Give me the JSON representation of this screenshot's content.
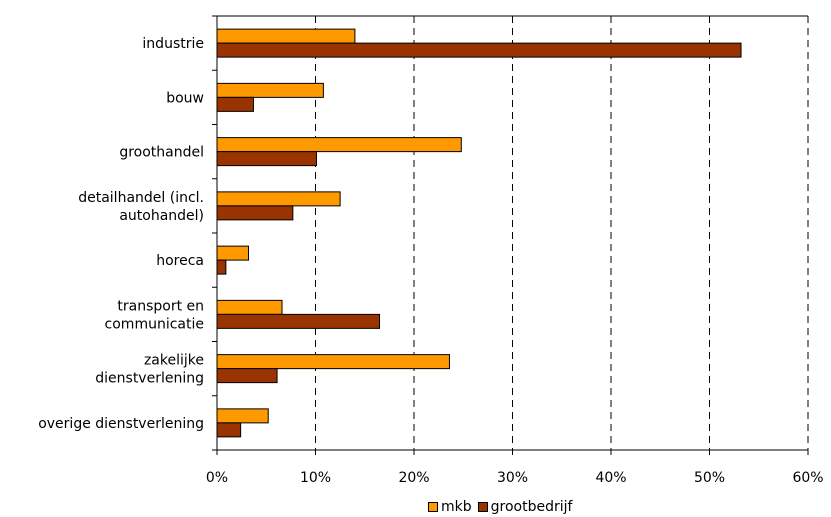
{
  "chart_data": {
    "type": "bar",
    "orientation": "horizontal",
    "categories": [
      [
        "industrie"
      ],
      [
        "bouw"
      ],
      [
        "groothandel"
      ],
      [
        "detailhandel (incl.",
        "autohandel)"
      ],
      [
        "horeca"
      ],
      [
        "transport en",
        "communicatie"
      ],
      [
        "zakelijke",
        "dienstverlening"
      ],
      [
        "overige dienstverlening"
      ]
    ],
    "series": [
      {
        "name": "mkb",
        "color": "#FF9900",
        "values": [
          14.0,
          10.8,
          24.8,
          12.5,
          3.2,
          6.6,
          23.6,
          5.2
        ]
      },
      {
        "name": "grootbedrijf",
        "color": "#993300",
        "values": [
          53.2,
          3.7,
          10.1,
          7.7,
          0.9,
          16.5,
          6.1,
          2.4
        ]
      }
    ],
    "xlim": [
      0,
      60
    ],
    "xticks": [
      "0%",
      "10%",
      "20%",
      "30%",
      "40%",
      "50%",
      "60%"
    ],
    "grid": "vertical dashed",
    "legend": "bottom",
    "title": "",
    "xlabel": "",
    "ylabel": ""
  }
}
